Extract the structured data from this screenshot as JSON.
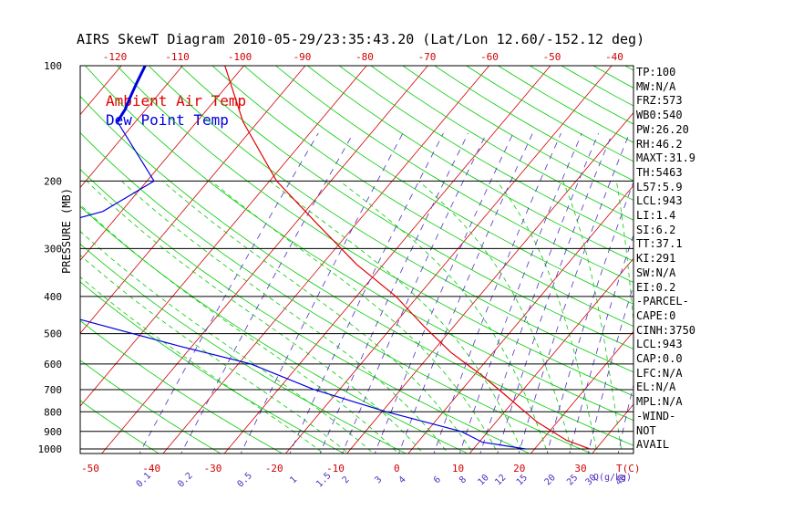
{
  "title": "AIRS SkewT Diagram 2010-05-29/23:35:43.20 (Lat/Lon 12.60/-152.12 deg)",
  "legend": {
    "air": "Ambient Air Temp",
    "dew": "Dew Point Temp"
  },
  "colors": {
    "air": "#e00000",
    "dew": "#0000e0",
    "dry_adiabat": "#00cc00",
    "isotherm": "#d00000",
    "mixing_ratio": "#5030c0",
    "moist_adiabat": "#00cc00"
  },
  "side_info": [
    "TP:100",
    "MW:N/A",
    "FRZ:573",
    "WB0:540",
    "PW:26.20",
    "RH:46.2",
    "MAXT:31.9",
    "TH:5463",
    "L57:5.9",
    "LCL:943",
    "LI:1.4",
    "SI:6.2",
    "TT:37.1",
    "KI:291",
    "SW:N/A",
    "EI:0.2",
    "-PARCEL-",
    "CAPE:0",
    "CINH:3750",
    "LCL:943",
    "CAP:0.0",
    "LFC:N/A",
    "EL:N/A",
    "MPL:N/A",
    "-WIND-",
    "NOT",
    "AVAIL"
  ],
  "chart_data": {
    "type": "line",
    "title": "AIRS SkewT Diagram 2010-05-29/23:35:43.20 (Lat/Lon 12.60/-152.12 deg)",
    "ylabel": "PRESSURE (MB)",
    "xlabel": "T(C)",
    "y_scale": "log",
    "y_ticks": [
      100,
      200,
      300,
      400,
      500,
      600,
      700,
      800,
      900,
      1000
    ],
    "top_ticks": [
      -120,
      -110,
      -100,
      -90,
      -80,
      -70,
      -60,
      -50,
      -40
    ],
    "bottom_ticks": [
      -50,
      -40,
      -30,
      -20,
      -10,
      0,
      10,
      20,
      30
    ],
    "mixing_ratio_labels": [
      "0.1",
      "0.2",
      "0.5",
      "1",
      "1.5",
      "2",
      "3",
      "4",
      "6",
      "8",
      "10",
      "12",
      "15",
      "20",
      "25",
      "30",
      "40",
      "Q(g/kg)"
    ],
    "series": [
      {
        "name": "Ambient Air Temp",
        "color": "#e00000",
        "points": [
          [
            100,
            -83
          ],
          [
            140,
            -72
          ],
          [
            200,
            -58
          ],
          [
            260,
            -45
          ],
          [
            330,
            -33
          ],
          [
            400,
            -22
          ],
          [
            480,
            -13
          ],
          [
            560,
            -5
          ],
          [
            650,
            4
          ],
          [
            750,
            12
          ],
          [
            850,
            19
          ],
          [
            950,
            26.5
          ],
          [
            1000,
            31.5
          ]
        ]
      },
      {
        "name": "Dew Point Temp",
        "color": "#0000e0",
        "points": [
          [
            100,
            -96
          ],
          [
            110,
            -95
          ],
          [
            120,
            -94
          ],
          [
            130,
            -93
          ],
          [
            140,
            -92.5
          ],
          [
            200,
            -78
          ],
          [
            240,
            -82
          ],
          [
            300,
            -99
          ],
          [
            330,
            -98
          ],
          [
            400,
            -93
          ],
          [
            460,
            -70
          ],
          [
            540,
            -50
          ],
          [
            600,
            -36
          ],
          [
            700,
            -22
          ],
          [
            800,
            -7
          ],
          [
            900,
            8
          ],
          [
            960,
            13
          ],
          [
            1000,
            21
          ]
        ]
      }
    ]
  }
}
